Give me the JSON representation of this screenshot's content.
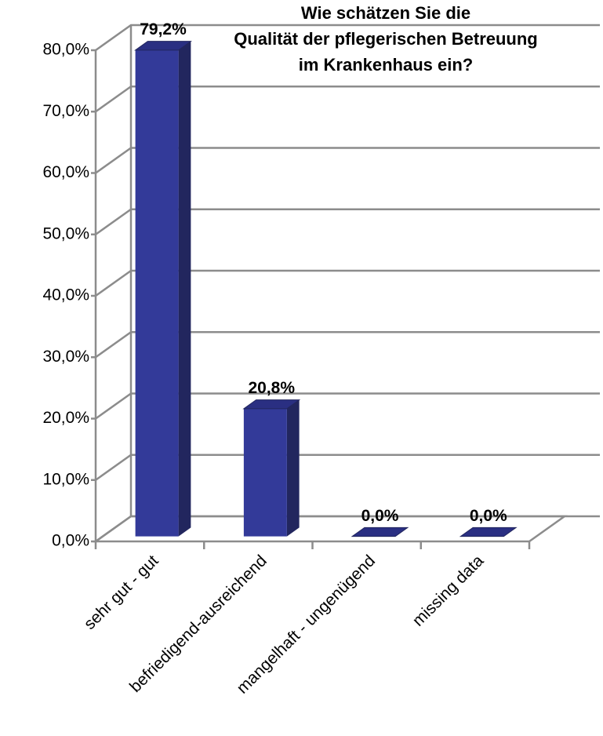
{
  "chart_data": {
    "type": "bar3d",
    "title": [
      "Wie schätzen Sie die",
      "Qualität der pflegerischen Betreuung",
      "im Krankenhaus ein?"
    ],
    "categories": [
      "sehr gut - gut",
      "befriedigend-ausreichend",
      "mangelhaft - ungenügend",
      "missing data"
    ],
    "values": [
      79.2,
      20.8,
      0,
      0
    ],
    "value_labels": [
      "79,2%",
      "20,8%",
      "0,0%",
      "0,0%"
    ],
    "color": "#333a99",
    "ylim": [
      0,
      80
    ],
    "yticks": [
      {
        "value": 0,
        "label": "0,0%"
      },
      {
        "value": 10,
        "label": "10,0%"
      },
      {
        "value": 20,
        "label": "20,0%"
      },
      {
        "value": 30,
        "label": "30,0%"
      },
      {
        "value": 40,
        "label": "40,0%"
      },
      {
        "value": 50,
        "label": "50,0%"
      },
      {
        "value": 60,
        "label": "60,0%"
      },
      {
        "value": 70,
        "label": "70,0%"
      },
      {
        "value": 80,
        "label": "80,0%"
      }
    ],
    "grid": true
  }
}
